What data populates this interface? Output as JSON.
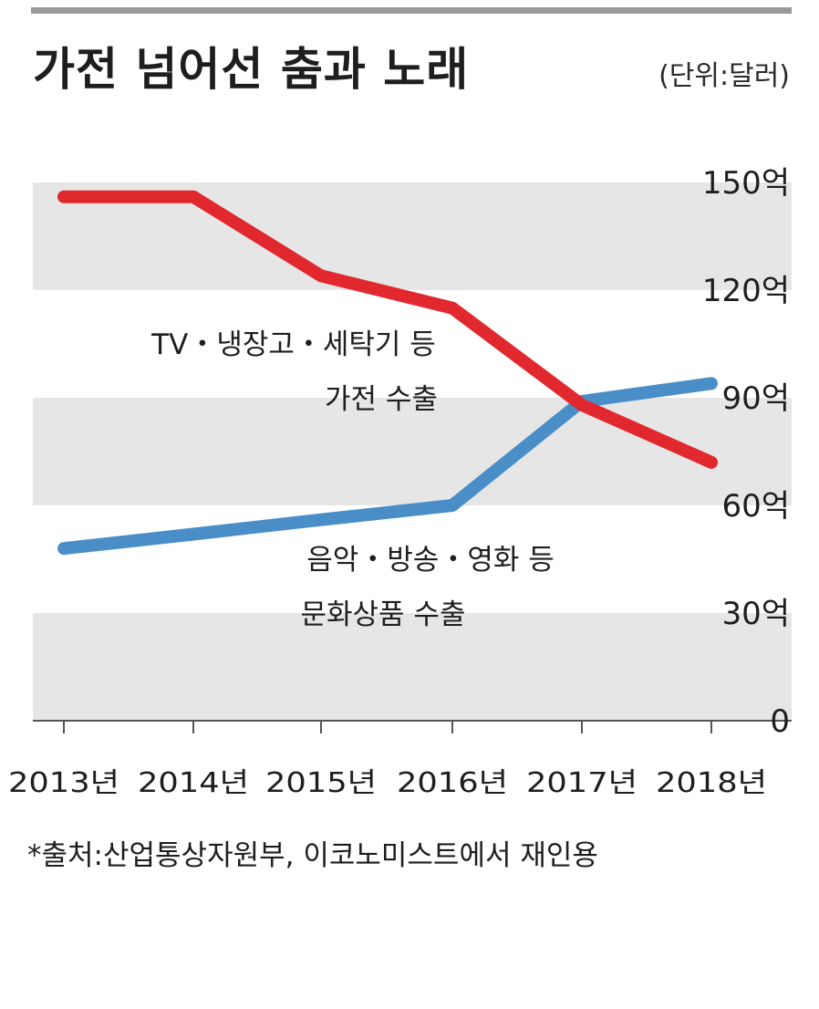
{
  "header": {
    "title": "가전 넘어선 춤과 노래",
    "unit": "(단위:달러)"
  },
  "footer": {
    "source": "*출처:산업통상자원부, 이코노미스트에서 재인용"
  },
  "colors": {
    "appliances": "#e0282e",
    "culture": "#4a8ec7",
    "band": "#e6e6e6"
  },
  "chart_data": {
    "type": "line",
    "title": "가전 넘어선 춤과 노래",
    "unit": "(단위:달러)",
    "categories": [
      "2013년",
      "2014년",
      "2015년",
      "2016년",
      "2017년",
      "2018년"
    ],
    "ylim": [
      0,
      150
    ],
    "yticks": [
      0,
      30,
      60,
      90,
      120,
      150
    ],
    "ytick_labels": [
      "0",
      "30억",
      "60억",
      "90억",
      "120억",
      "150억"
    ],
    "grid": "alternating horizontal bands",
    "series": [
      {
        "name": "TV・냉장고・세탁기 등 가전 수출",
        "label_lines": [
          "TV・냉장고・세탁기 등",
          "가전 수출"
        ],
        "color": "#e0282e",
        "values": [
          146,
          146,
          124,
          115,
          88,
          72
        ]
      },
      {
        "name": "음악・방송・영화 등 문화상품 수출",
        "label_lines": [
          "음악・방송・영화 등",
          "문화상품 수출"
        ],
        "color": "#4a8ec7",
        "values": [
          48,
          52,
          56,
          60,
          89,
          94
        ]
      }
    ]
  }
}
